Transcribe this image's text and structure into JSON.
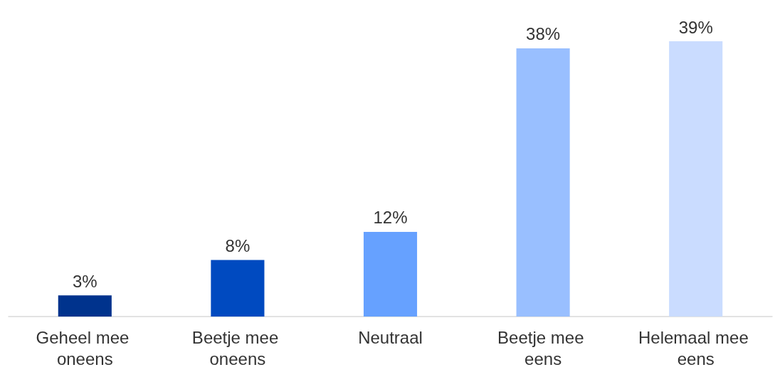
{
  "chart_data": {
    "type": "bar",
    "categories": [
      "Geheel mee oneens",
      "Beetje mee oneens",
      "Neutraal",
      "Beetje mee eens",
      "Helemaal mee eens"
    ],
    "values": [
      3,
      8,
      12,
      38,
      39
    ],
    "colors": [
      "#00338d",
      "#004ac0",
      "#66a1ff",
      "#99bfff",
      "#cadcff"
    ],
    "value_labels": [
      "3%",
      "8%",
      "12%",
      "38%",
      "39%"
    ],
    "ylim": [
      0,
      39
    ],
    "tick_labels": "x"
  }
}
